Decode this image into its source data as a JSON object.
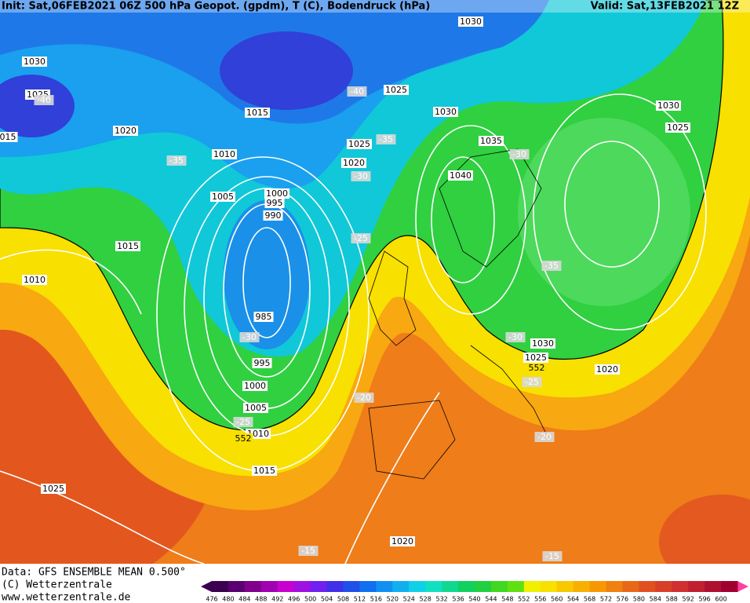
{
  "header": {
    "init": "Init: Sat,06FEB2021 06Z  500 hPa Geopot. (gpdm), T (C), Bodendruck (hPa)",
    "valid": "Valid: Sat,13FEB2021 12Z"
  },
  "isobar_labels": [
    "1030",
    "1030",
    "1025",
    "1025",
    "015",
    "1020",
    "1015",
    "1030",
    "1030",
    "1025",
    "1035",
    "1025",
    "1010",
    "1020",
    "1040",
    "1005",
    "1000",
    "995",
    "990",
    "1015",
    "1010",
    "985",
    "995",
    "1000",
    "1005",
    "1010",
    "1015",
    "1025",
    "1030",
    "1025",
    "1020",
    "1020"
  ],
  "temperature_labels": [
    "-40",
    "-40",
    "-35",
    "-35",
    "-30",
    "-30",
    "-25",
    "-35",
    "-30",
    "-30",
    "-25",
    "-20",
    "-25",
    "-20",
    "-15",
    "-15"
  ],
  "contour_labels": [
    "552",
    "552"
  ],
  "footer": {
    "data": "Data: GFS ENSEMBLE MEAN 0.500°",
    "copyright": "(C) Wetterzentrale",
    "url": "www.wetterzentrale.de"
  },
  "scale": {
    "values": [
      476,
      480,
      484,
      488,
      492,
      496,
      500,
      504,
      508,
      512,
      516,
      520,
      524,
      528,
      532,
      536,
      540,
      544,
      548,
      552,
      556,
      560,
      564,
      568,
      572,
      576,
      580,
      584,
      588,
      592,
      596,
      600
    ],
    "colors": [
      "#3c0050",
      "#5a0070",
      "#80008c",
      "#a000b0",
      "#c800d0",
      "#a010e0",
      "#7020f0",
      "#4030e8",
      "#2050e8",
      "#1070f0",
      "#1090f0",
      "#10b0f0",
      "#10d0e8",
      "#10e0c0",
      "#10d890",
      "#10d060",
      "#20d040",
      "#40d820",
      "#60e010",
      "#f0f000",
      "#f8e000",
      "#f8c800",
      "#f8b000",
      "#f89800",
      "#f08010",
      "#e86818",
      "#e05020",
      "#d84028",
      "#d03030",
      "#c02030",
      "#b01030",
      "#a00030"
    ]
  }
}
